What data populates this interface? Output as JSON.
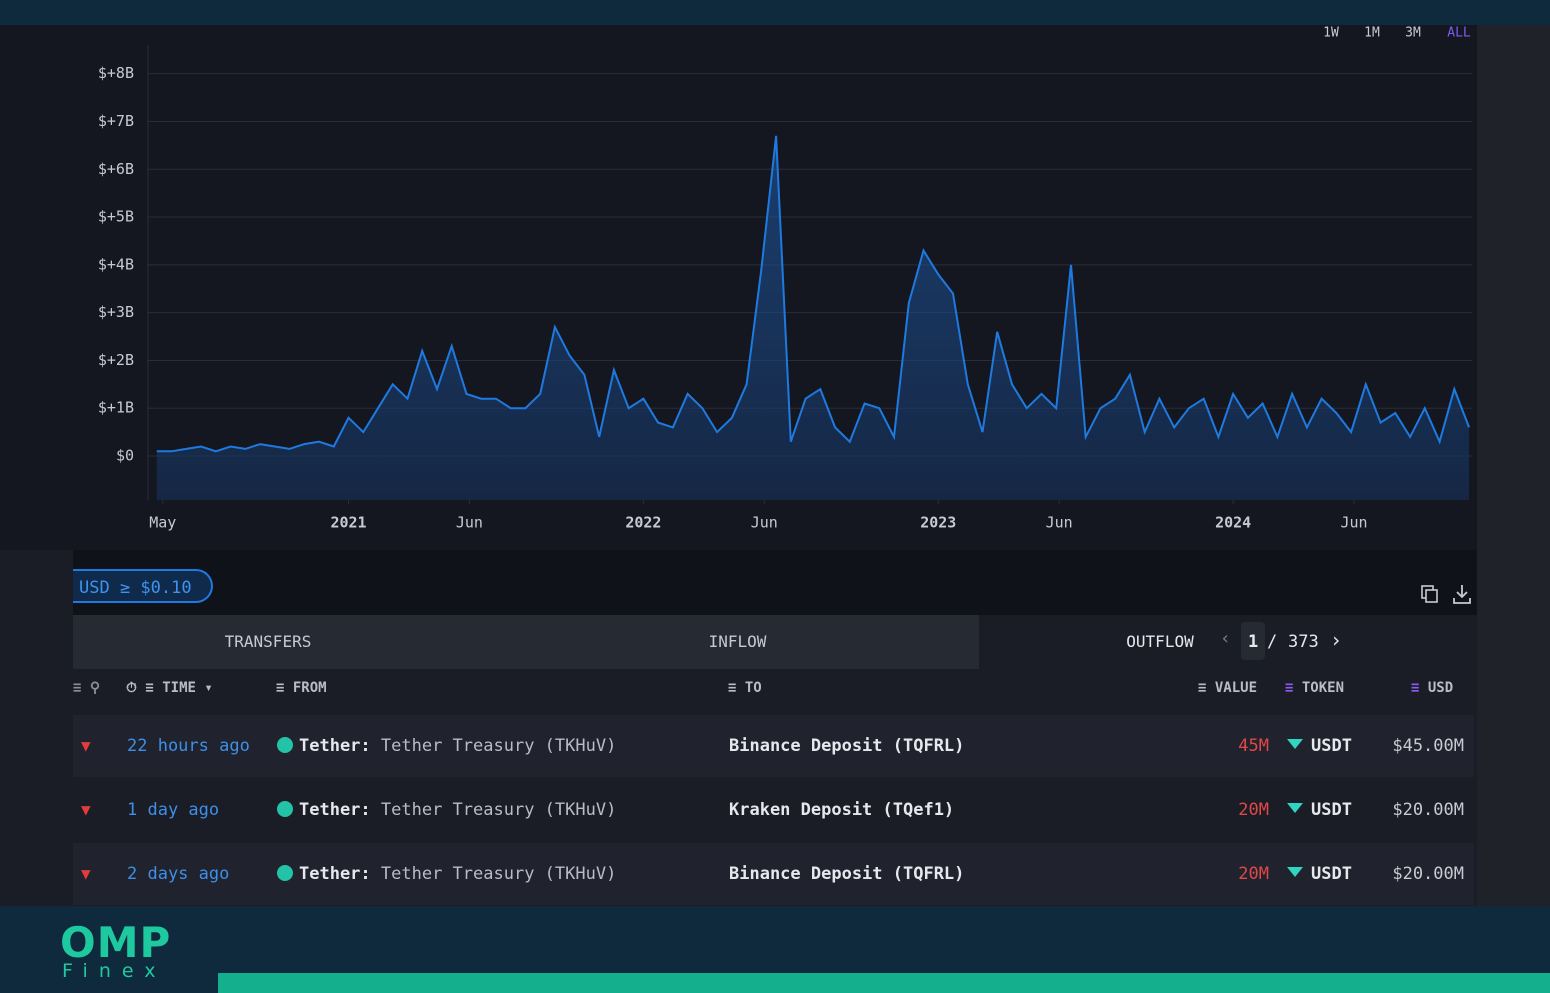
{
  "chart_data": {
    "type": "area",
    "color": "#1f7ae0",
    "grid": true,
    "range_buttons": [
      "1W",
      "1M",
      "3M",
      "ALL"
    ],
    "active_range": 3,
    "xlim": [
      2020.32,
      2024.81
    ],
    "xticks": [
      {
        "value": 2020.37,
        "label": "May"
      },
      2021,
      {
        "value": 2021.41,
        "label": "Jun"
      },
      2022,
      {
        "value": 2022.41,
        "label": "Jun"
      },
      2023,
      {
        "value": 2023.41,
        "label": "Jun"
      },
      2024,
      {
        "value": 2024.41,
        "label": "Jun"
      }
    ],
    "ylim": [
      -0.92,
      8.6
    ],
    "yticks": [
      {
        "value": 0,
        "label": "$0"
      },
      {
        "value": 1,
        "label": "$+1B"
      },
      {
        "value": 2,
        "label": "$+2B"
      },
      {
        "value": 3,
        "label": "$+3B"
      },
      {
        "value": 4,
        "label": "$+4B"
      },
      {
        "value": 5,
        "label": "$+5B"
      },
      {
        "value": 6,
        "label": "$+6B"
      },
      {
        "value": 7,
        "label": "$+7B"
      },
      {
        "value": 8,
        "label": "$+8B"
      }
    ],
    "x": [
      2020.35,
      2020.4,
      2020.45,
      2020.5,
      2020.55,
      2020.6,
      2020.65,
      2020.7,
      2020.75,
      2020.8,
      2020.85,
      2020.9,
      2020.95,
      2021.0,
      2021.05,
      2021.1,
      2021.15,
      2021.2,
      2021.25,
      2021.3,
      2021.35,
      2021.4,
      2021.45,
      2021.5,
      2021.55,
      2021.6,
      2021.65,
      2021.7,
      2021.75,
      2021.8,
      2021.85,
      2021.9,
      2021.95,
      2022.0,
      2022.05,
      2022.1,
      2022.15,
      2022.2,
      2022.25,
      2022.3,
      2022.35,
      2022.4,
      2022.45,
      2022.5,
      2022.55,
      2022.6,
      2022.65,
      2022.7,
      2022.75,
      2022.8,
      2022.85,
      2022.9,
      2022.95,
      2023.0,
      2023.05,
      2023.1,
      2023.15,
      2023.2,
      2023.25,
      2023.3,
      2023.35,
      2023.4,
      2023.45,
      2023.5,
      2023.55,
      2023.6,
      2023.65,
      2023.7,
      2023.75,
      2023.8,
      2023.85,
      2023.9,
      2023.95,
      2024.0,
      2024.05,
      2024.1,
      2024.15,
      2024.2,
      2024.25,
      2024.3,
      2024.35,
      2024.4,
      2024.45,
      2024.5,
      2024.55,
      2024.6,
      2024.65,
      2024.7,
      2024.75,
      2024.8
    ],
    "values": [
      0.1,
      0.1,
      0.15,
      0.2,
      0.1,
      0.2,
      0.15,
      0.25,
      0.2,
      0.15,
      0.25,
      0.3,
      0.2,
      0.8,
      0.5,
      1.0,
      1.5,
      1.2,
      2.2,
      1.4,
      2.3,
      1.3,
      1.2,
      1.2,
      1.0,
      1.0,
      1.3,
      2.7,
      2.1,
      1.7,
      0.4,
      1.8,
      1.0,
      1.2,
      0.7,
      0.6,
      1.3,
      1.0,
      0.5,
      0.8,
      1.5,
      3.9,
      6.7,
      0.3,
      1.2,
      1.4,
      0.6,
      0.3,
      1.1,
      1.0,
      0.4,
      3.2,
      4.3,
      3.8,
      3.4,
      1.5,
      0.5,
      2.6,
      1.5,
      1.0,
      1.3,
      1.0,
      4.0,
      0.4,
      1.0,
      1.2,
      1.7,
      0.5,
      1.2,
      0.6,
      1.0,
      1.2,
      0.4,
      1.3,
      0.8,
      1.1,
      0.4,
      1.3,
      0.6,
      1.2,
      0.9,
      0.5,
      1.5,
      0.7,
      0.9,
      0.4,
      1.0,
      0.3,
      1.4,
      0.6
    ]
  },
  "filter": "USD ≥ $0.10",
  "tabs": [
    "TRANSFERS",
    "INFLOW",
    "OUTFLOW"
  ],
  "pagination": {
    "page": "1",
    "total": "373"
  },
  "table": {
    "headers": {
      "time": "TIME",
      "from": "FROM",
      "to": "TO",
      "value": "VALUE",
      "token": "TOKEN",
      "usd": "USD"
    },
    "rows": [
      {
        "time": "22 hours ago",
        "from_entity": "Tether:",
        "from_name": "Tether Treasury (TKHuV)",
        "to": "Binance Deposit (TQFRL)",
        "value": "45M",
        "token": "USDT",
        "usd": "$45.00M"
      },
      {
        "time": "1 day ago",
        "from_entity": "Tether:",
        "from_name": "Tether Treasury (TKHuV)",
        "to": "Kraken Deposit (TQef1)",
        "value": "20M",
        "token": "USDT",
        "usd": "$20.00M"
      },
      {
        "time": "2 days ago",
        "from_entity": "Tether:",
        "from_name": "Tether Treasury (TKHuV)",
        "to": "Binance Deposit (TQFRL)",
        "value": "20M",
        "token": "USDT",
        "usd": "$20.00M"
      }
    ]
  },
  "logo": {
    "brand": "OMP",
    "sub": "Finex"
  }
}
